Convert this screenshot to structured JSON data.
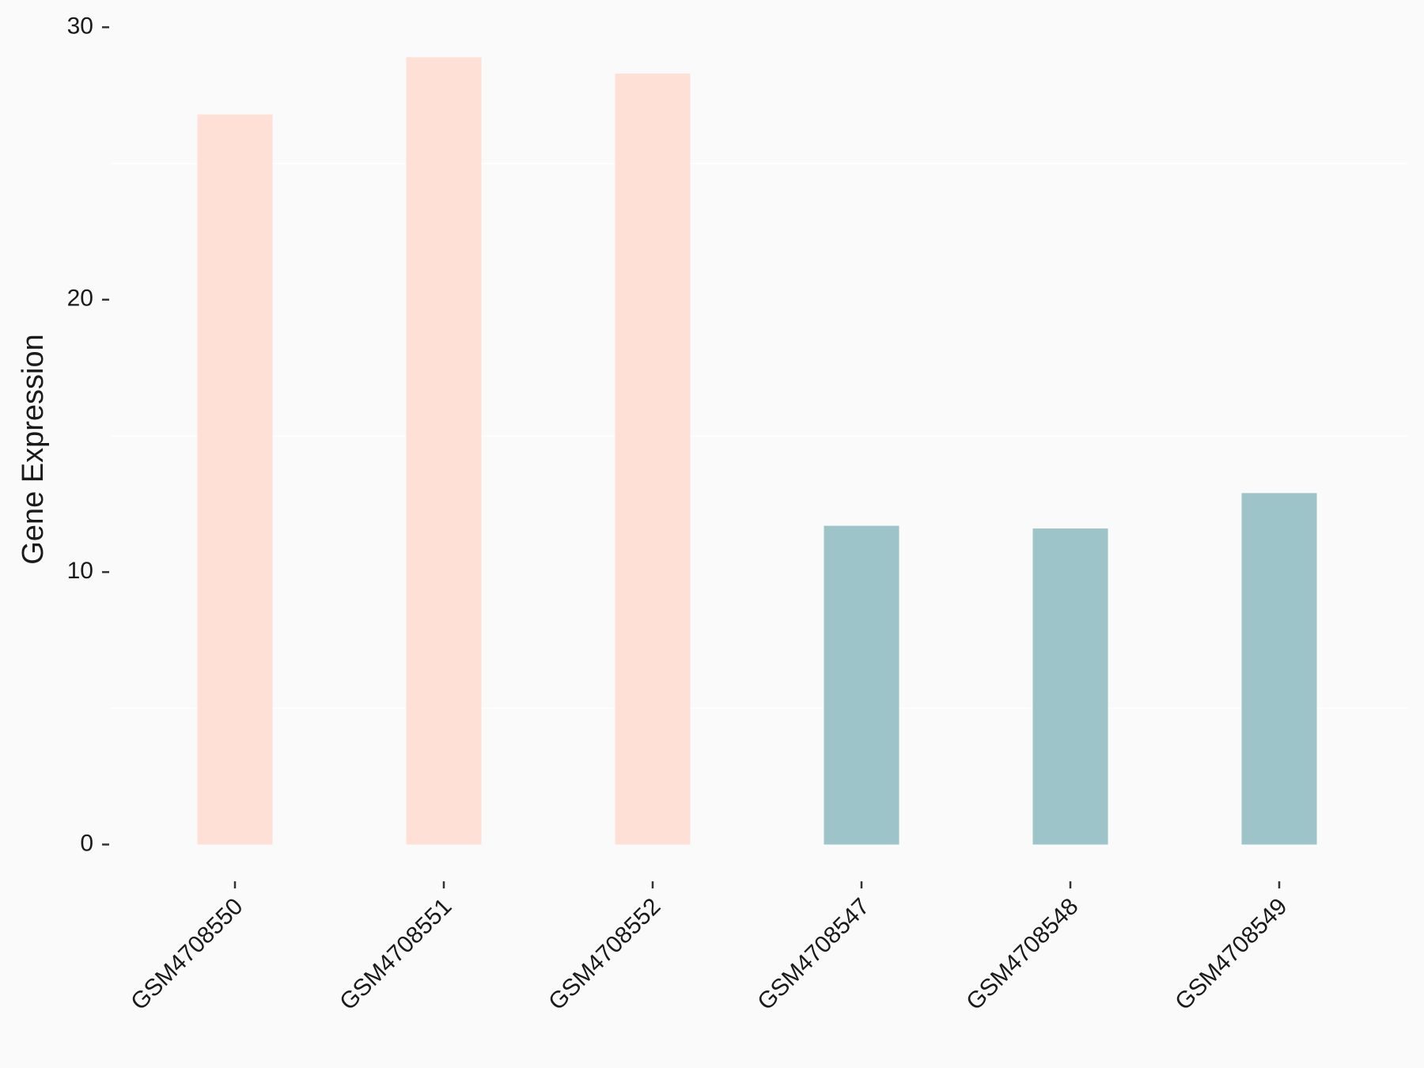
{
  "chart_data": {
    "type": "bar",
    "y_label": "Gene Expression",
    "categories": [
      "GSM4708550",
      "GSM4708551",
      "GSM4708552",
      "GSM4708547",
      "GSM4708548",
      "GSM4708549"
    ],
    "values": [
      26.8,
      28.9,
      28.3,
      11.7,
      11.6,
      12.9
    ],
    "colors": [
      "#ffe0d6",
      "#ffe0d6",
      "#ffe0d6",
      "#9dc4c8",
      "#9dc4c8",
      "#9dc4c8"
    ],
    "ylim": [
      -1.35,
      31
    ],
    "yticks": [
      0,
      10,
      20,
      30
    ],
    "minor_grid": [
      5,
      15,
      25
    ]
  }
}
